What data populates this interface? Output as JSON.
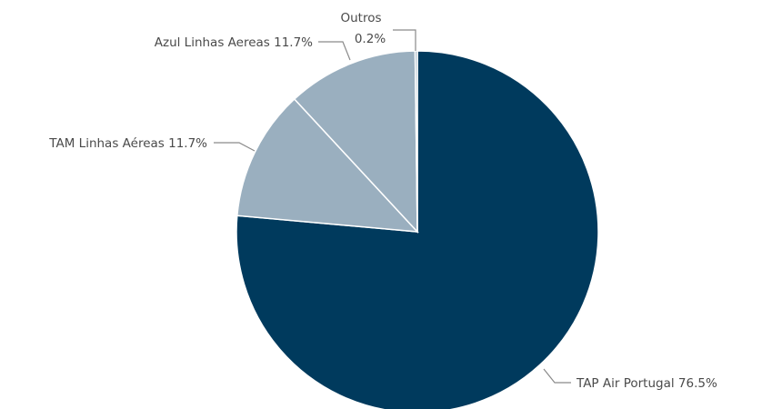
{
  "chart_data": {
    "type": "pie",
    "title": "",
    "slices": [
      {
        "name": "TAP Air Portugal",
        "percent_label": "76.5%",
        "value": 76.5,
        "color": "#003a5d"
      },
      {
        "name": "TAM Linhas Aéreas",
        "percent_label": "11.7%",
        "value": 11.7,
        "color": "#9aafbf"
      },
      {
        "name": "Azul Linhas Aereas",
        "percent_label": "11.7%",
        "value": 11.7,
        "color": "#9aafbf"
      },
      {
        "name": "Outros",
        "percent_label": "0.2%",
        "value": 0.2,
        "color": "#9aafbf"
      }
    ],
    "start_angle_deg": 0,
    "direction": "clockwise",
    "legend": "none",
    "labels": "outside-with-leaders"
  }
}
